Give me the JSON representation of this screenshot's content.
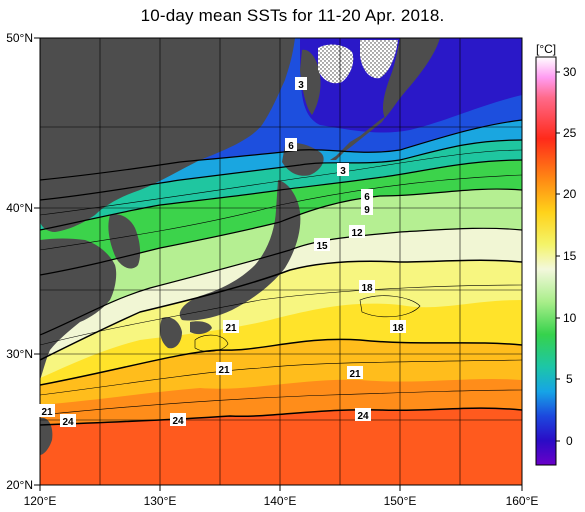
{
  "title": "10-day mean SSTs for 11-20 Apr. 2018.",
  "map": {
    "lat_labels": [
      "50°N",
      "40°N",
      "30°N",
      "20°N"
    ],
    "lon_labels": [
      "120°E",
      "130°E",
      "140°E",
      "150°E",
      "160°E"
    ],
    "land_color": "#4d4d4d",
    "sea_ice_pattern": "dotted-white",
    "contour_labels": [
      "3",
      "6",
      "3",
      "6",
      "9",
      "12",
      "15",
      "18",
      "18",
      "21",
      "21",
      "21",
      "21",
      "24",
      "24",
      "24"
    ]
  },
  "colorbar": {
    "unit": "[°C]",
    "ticks": [
      "30",
      "25",
      "20",
      "15",
      "10",
      "5",
      "0"
    ],
    "colors": [
      "#ffffff",
      "#ff99ff",
      "#ff3d2e",
      "#ff8a1a",
      "#ffd21a",
      "#f7f770",
      "#f2f7d8",
      "#b6f0a0",
      "#37d34a",
      "#1fc7a2",
      "#19a8e0",
      "#1c4fe0",
      "#2410c8",
      "#6a00c8"
    ]
  }
}
